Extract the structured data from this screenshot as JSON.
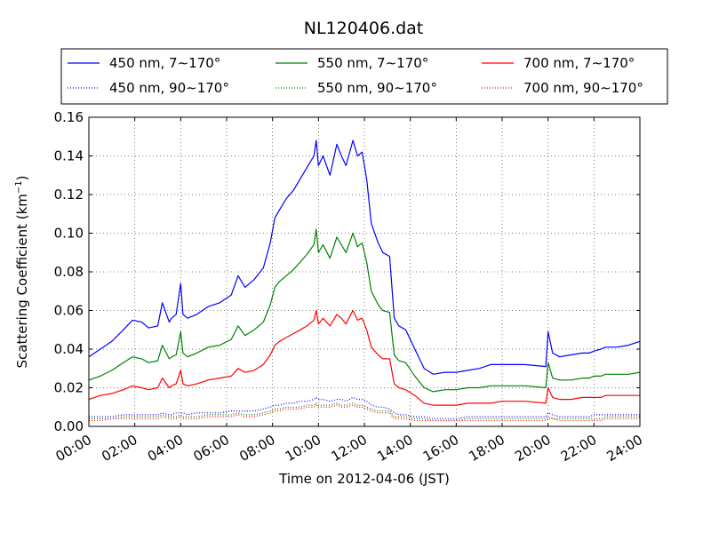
{
  "chart_data": {
    "type": "line",
    "title": "NL120406.dat",
    "xlabel": "Time on 2012-04-06 (JST)",
    "ylabel": "Scattering Coefficient (km",
    "ylabel_sup": "−1",
    "ylabel_end": ")",
    "xlim": [
      0,
      24
    ],
    "ylim": [
      0,
      0.16
    ],
    "grid": true,
    "legend_position": "top",
    "x_unit": "hours",
    "xticks": [
      0,
      2,
      4,
      6,
      8,
      10,
      12,
      14,
      16,
      18,
      20,
      22,
      24
    ],
    "xtick_labels": [
      "00:00",
      "02:00",
      "04:00",
      "06:00",
      "08:00",
      "10:00",
      "12:00",
      "14:00",
      "16:00",
      "18:00",
      "20:00",
      "22:00",
      "24:00"
    ],
    "yticks": [
      0,
      0.02,
      0.04,
      0.06,
      0.08,
      0.1,
      0.12,
      0.14,
      0.16
    ],
    "ytick_labels": [
      "0.00",
      "0.02",
      "0.04",
      "0.06",
      "0.08",
      "0.10",
      "0.12",
      "0.14",
      "0.16"
    ],
    "x": [
      0.0,
      0.5,
      1.0,
      1.5,
      1.9,
      2.3,
      2.6,
      3.0,
      3.2,
      3.5,
      3.6,
      3.8,
      4.0,
      4.1,
      4.3,
      4.7,
      5.2,
      5.7,
      6.2,
      6.5,
      6.8,
      7.2,
      7.6,
      7.9,
      8.1,
      8.3,
      8.6,
      8.9,
      9.2,
      9.5,
      9.8,
      9.9,
      10.0,
      10.2,
      10.5,
      10.8,
      11.0,
      11.2,
      11.5,
      11.7,
      11.9,
      12.1,
      12.3,
      12.6,
      12.8,
      13.1,
      13.3,
      13.5,
      13.8,
      14.2,
      14.6,
      15.0,
      15.5,
      16.0,
      16.5,
      17.0,
      17.5,
      18.0,
      19.0,
      19.9,
      20.0,
      20.2,
      20.5,
      21.0,
      21.5,
      21.8,
      22.0,
      22.3,
      22.5,
      23.0,
      23.5,
      24.0
    ],
    "series": [
      {
        "name": "450 nm, 7∼170°",
        "color": "#0000ff",
        "style": "solid",
        "values": [
          0.036,
          0.04,
          0.044,
          0.05,
          0.055,
          0.054,
          0.051,
          0.052,
          0.064,
          0.054,
          0.056,
          0.058,
          0.074,
          0.058,
          0.056,
          0.058,
          0.062,
          0.064,
          0.068,
          0.078,
          0.072,
          0.076,
          0.082,
          0.095,
          0.108,
          0.112,
          0.118,
          0.122,
          0.128,
          0.134,
          0.14,
          0.148,
          0.135,
          0.14,
          0.13,
          0.146,
          0.14,
          0.135,
          0.148,
          0.14,
          0.142,
          0.128,
          0.105,
          0.095,
          0.09,
          0.088,
          0.056,
          0.052,
          0.05,
          0.04,
          0.03,
          0.027,
          0.028,
          0.028,
          0.029,
          0.03,
          0.032,
          0.032,
          0.032,
          0.031,
          0.049,
          0.038,
          0.036,
          0.037,
          0.038,
          0.038,
          0.039,
          0.04,
          0.041,
          0.041,
          0.042,
          0.044
        ]
      },
      {
        "name": "550 nm, 7∼170°",
        "color": "#008000",
        "style": "solid",
        "values": [
          0.024,
          0.026,
          0.029,
          0.033,
          0.036,
          0.035,
          0.033,
          0.034,
          0.042,
          0.035,
          0.036,
          0.037,
          0.049,
          0.038,
          0.036,
          0.038,
          0.041,
          0.042,
          0.045,
          0.052,
          0.047,
          0.05,
          0.054,
          0.063,
          0.072,
          0.075,
          0.078,
          0.081,
          0.085,
          0.089,
          0.094,
          0.102,
          0.09,
          0.094,
          0.087,
          0.098,
          0.094,
          0.09,
          0.1,
          0.093,
          0.095,
          0.085,
          0.07,
          0.063,
          0.06,
          0.059,
          0.037,
          0.034,
          0.033,
          0.026,
          0.02,
          0.018,
          0.019,
          0.019,
          0.02,
          0.02,
          0.021,
          0.021,
          0.021,
          0.02,
          0.033,
          0.025,
          0.024,
          0.024,
          0.025,
          0.025,
          0.026,
          0.026,
          0.027,
          0.027,
          0.027,
          0.028
        ]
      },
      {
        "name": "700 nm, 7∼170°",
        "color": "#ff0000",
        "style": "solid",
        "values": [
          0.014,
          0.016,
          0.017,
          0.019,
          0.021,
          0.02,
          0.019,
          0.02,
          0.025,
          0.02,
          0.021,
          0.022,
          0.029,
          0.022,
          0.021,
          0.022,
          0.024,
          0.025,
          0.026,
          0.03,
          0.028,
          0.029,
          0.032,
          0.037,
          0.042,
          0.044,
          0.046,
          0.048,
          0.05,
          0.052,
          0.055,
          0.06,
          0.053,
          0.056,
          0.052,
          0.058,
          0.056,
          0.053,
          0.06,
          0.055,
          0.056,
          0.05,
          0.041,
          0.037,
          0.035,
          0.035,
          0.022,
          0.02,
          0.019,
          0.016,
          0.012,
          0.011,
          0.011,
          0.011,
          0.012,
          0.012,
          0.012,
          0.013,
          0.013,
          0.012,
          0.02,
          0.015,
          0.014,
          0.014,
          0.015,
          0.015,
          0.015,
          0.015,
          0.016,
          0.016,
          0.016,
          0.016
        ]
      },
      {
        "name": "450 nm, 90∼170°",
        "color": "#0000ff",
        "style": "dotted",
        "values": [
          0.005,
          0.005,
          0.005,
          0.006,
          0.006,
          0.006,
          0.006,
          0.006,
          0.007,
          0.006,
          0.006,
          0.007,
          0.007,
          0.007,
          0.006,
          0.007,
          0.007,
          0.007,
          0.008,
          0.008,
          0.008,
          0.008,
          0.009,
          0.01,
          0.011,
          0.011,
          0.012,
          0.012,
          0.013,
          0.013,
          0.014,
          0.015,
          0.014,
          0.014,
          0.013,
          0.014,
          0.014,
          0.013,
          0.015,
          0.014,
          0.014,
          0.013,
          0.011,
          0.01,
          0.01,
          0.009,
          0.007,
          0.006,
          0.006,
          0.005,
          0.005,
          0.004,
          0.004,
          0.004,
          0.005,
          0.005,
          0.005,
          0.005,
          0.005,
          0.005,
          0.007,
          0.006,
          0.005,
          0.005,
          0.005,
          0.005,
          0.006,
          0.006,
          0.006,
          0.006,
          0.006,
          0.006
        ]
      },
      {
        "name": "550 nm, 90∼170°",
        "color": "#008000",
        "style": "dotted",
        "values": [
          0.004,
          0.004,
          0.004,
          0.005,
          0.005,
          0.005,
          0.005,
          0.005,
          0.006,
          0.005,
          0.005,
          0.005,
          0.006,
          0.005,
          0.005,
          0.005,
          0.006,
          0.006,
          0.006,
          0.007,
          0.006,
          0.006,
          0.007,
          0.008,
          0.009,
          0.009,
          0.01,
          0.01,
          0.01,
          0.011,
          0.011,
          0.012,
          0.011,
          0.011,
          0.011,
          0.012,
          0.011,
          0.011,
          0.012,
          0.011,
          0.011,
          0.01,
          0.009,
          0.008,
          0.008,
          0.008,
          0.005,
          0.005,
          0.005,
          0.004,
          0.004,
          0.003,
          0.003,
          0.003,
          0.004,
          0.004,
          0.004,
          0.004,
          0.004,
          0.004,
          0.005,
          0.004,
          0.004,
          0.004,
          0.004,
          0.004,
          0.004,
          0.004,
          0.005,
          0.005,
          0.005,
          0.005
        ]
      },
      {
        "name": "700 nm, 90∼170°",
        "color": "#ff0000",
        "style": "dotted",
        "values": [
          0.003,
          0.003,
          0.004,
          0.004,
          0.004,
          0.004,
          0.004,
          0.004,
          0.005,
          0.004,
          0.004,
          0.004,
          0.005,
          0.004,
          0.004,
          0.004,
          0.005,
          0.005,
          0.005,
          0.006,
          0.005,
          0.005,
          0.006,
          0.007,
          0.008,
          0.008,
          0.009,
          0.009,
          0.009,
          0.01,
          0.01,
          0.011,
          0.01,
          0.01,
          0.01,
          0.011,
          0.01,
          0.01,
          0.011,
          0.01,
          0.01,
          0.009,
          0.008,
          0.007,
          0.007,
          0.007,
          0.004,
          0.004,
          0.004,
          0.003,
          0.003,
          0.003,
          0.003,
          0.003,
          0.003,
          0.003,
          0.003,
          0.003,
          0.003,
          0.003,
          0.004,
          0.004,
          0.003,
          0.003,
          0.003,
          0.003,
          0.003,
          0.003,
          0.004,
          0.004,
          0.004,
          0.004
        ]
      }
    ]
  }
}
